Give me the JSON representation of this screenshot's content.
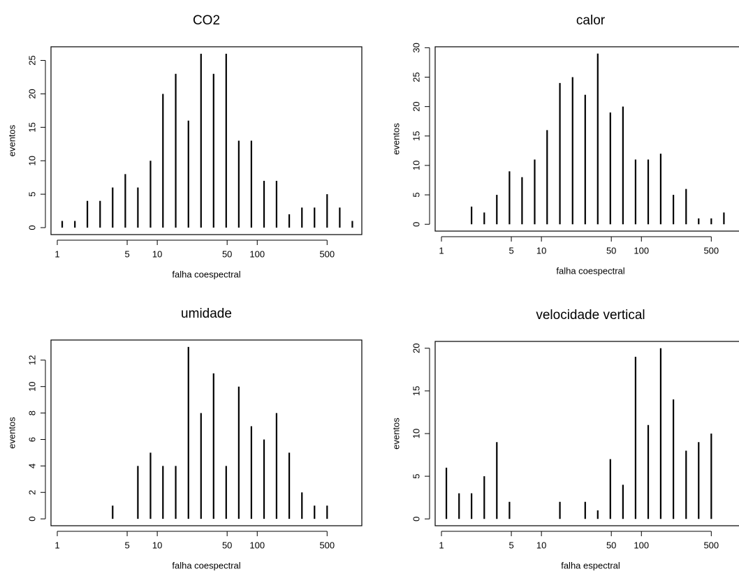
{
  "chart_data": [
    {
      "type": "bar",
      "title": "CO2",
      "xlabel": "falha coespectral",
      "ylabel": "eventos",
      "xscale": "log",
      "color": "#000000",
      "x": [
        1.12,
        1.5,
        2,
        2.68,
        3.58,
        4.79,
        6.4,
        8.56,
        11.4,
        15.3,
        20.5,
        27.4,
        36.6,
        48.9,
        65.4,
        87.4,
        117,
        156,
        209,
        280,
        374,
        500,
        669,
        894
      ],
      "values": [
        1,
        1,
        4,
        4,
        6,
        8,
        6,
        10,
        20,
        23,
        16,
        26,
        23,
        26,
        13,
        13,
        7,
        7,
        2,
        3,
        3,
        5,
        3,
        1
      ],
      "xlim": [
        0.865,
        1112
      ],
      "ylim": [
        -1.04,
        27.04
      ],
      "xticks": [
        1,
        5,
        10,
        50,
        100,
        500
      ],
      "yticks": [
        0,
        5,
        10,
        15,
        20,
        25
      ]
    },
    {
      "type": "bar",
      "title": "calor",
      "xlabel": "falha coespectral",
      "ylabel": "eventos",
      "xscale": "log",
      "color": "#000000",
      "x": [
        2,
        2.68,
        3.58,
        4.79,
        6.4,
        8.56,
        11.4,
        15.3,
        20.5,
        27.4,
        36.6,
        48.9,
        65.4,
        87.4,
        117,
        156,
        209,
        280,
        374,
        500,
        669
      ],
      "values": [
        3,
        2,
        5,
        9,
        8,
        11,
        16,
        24,
        25,
        22,
        29,
        19,
        20,
        11,
        11,
        12,
        5,
        6,
        1,
        1,
        2
      ],
      "xlim": [
        0.865,
        1112
      ],
      "ylim": [
        -1.16,
        30.16
      ],
      "xticks": [
        1,
        5,
        10,
        50,
        100,
        500
      ],
      "yticks": [
        0,
        5,
        10,
        15,
        20,
        25,
        30
      ]
    },
    {
      "type": "bar",
      "title": "umidade",
      "xlabel": "falha coespectral",
      "ylabel": "eventos",
      "xscale": "log",
      "color": "#000000",
      "x": [
        3.58,
        6.4,
        8.56,
        11.4,
        15.3,
        20.5,
        27.4,
        36.6,
        48.9,
        65.4,
        87.4,
        117,
        156,
        209,
        280,
        374,
        500
      ],
      "values": [
        1,
        4,
        5,
        4,
        4,
        13,
        8,
        11,
        4,
        10,
        7,
        6,
        8,
        5,
        2,
        1,
        1
      ],
      "xlim": [
        0.865,
        1112
      ],
      "ylim": [
        -0.52,
        13.52
      ],
      "xticks": [
        1,
        5,
        10,
        50,
        100,
        500
      ],
      "yticks": [
        0,
        2,
        4,
        6,
        8,
        10,
        12
      ]
    },
    {
      "type": "bar",
      "title": "velocidade vertical",
      "xlabel": "falha espectral",
      "ylabel": "eventos",
      "xscale": "log",
      "color": "#000000",
      "x": [
        1.12,
        1.5,
        2,
        2.68,
        3.58,
        4.79,
        15.3,
        27.4,
        36.6,
        48.9,
        65.4,
        87.4,
        117,
        156,
        209,
        280,
        374,
        500
      ],
      "values": [
        6,
        3,
        3,
        5,
        9,
        2,
        2,
        2,
        1,
        7,
        4,
        19,
        11,
        20,
        14,
        8,
        9,
        10
      ],
      "xlim": [
        0.865,
        1112
      ],
      "ylim": [
        -0.8,
        20.8
      ],
      "xticks": [
        1,
        5,
        10,
        50,
        100,
        500
      ],
      "yticks": [
        0,
        5,
        10,
        15,
        20
      ]
    }
  ]
}
